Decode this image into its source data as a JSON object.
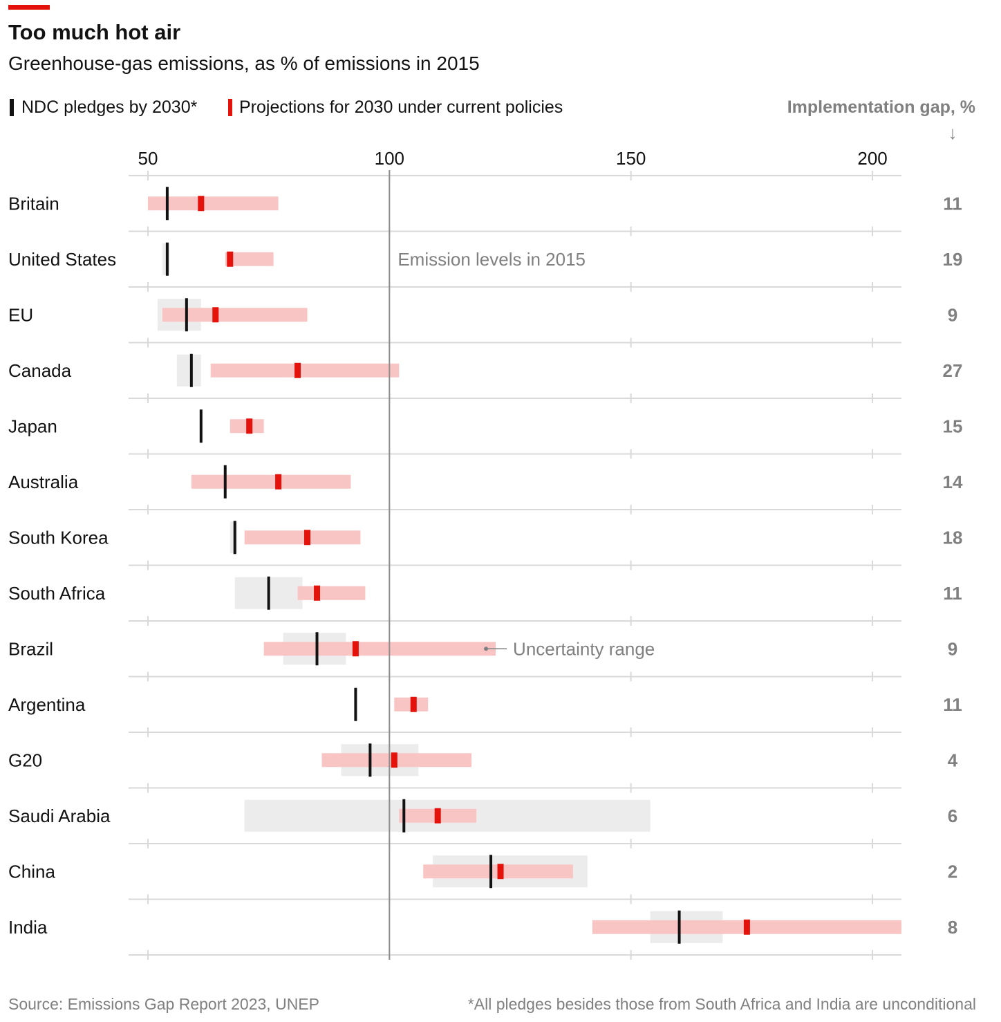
{
  "colors": {
    "brand": "#e3120b",
    "pledge": "#121212",
    "pledge_range": "#ececec",
    "projection": "#e3120b",
    "projection_range": "#f9c5c4",
    "reference_line": "#8c8c8c",
    "separator": "#d9d9d9",
    "muted_text": "#808080"
  },
  "chart_data": {
    "type": "scatter",
    "title": "Too much hot air",
    "subtitle": "Greenhouse-gas emissions, as % of emissions in 2015",
    "xlabel": "",
    "ylabel": "",
    "xlim": [
      46,
      206
    ],
    "xticks": [
      50,
      100,
      150,
      200
    ],
    "xaxis_position": "top",
    "grid": {
      "vertical": false,
      "horizontal": true
    },
    "legend_placement": "top-left",
    "categories": [
      "Britain",
      "United States",
      "EU",
      "Canada",
      "Japan",
      "Australia",
      "South Korea",
      "South Africa",
      "Brazil",
      "Argentina",
      "G20",
      "Saudi Arabia",
      "China",
      "India"
    ],
    "series": [
      {
        "name": "NDC pledges by 2030*",
        "values": [
          54,
          54,
          58,
          59,
          61,
          66,
          68,
          75,
          85,
          93,
          96,
          103,
          121,
          160
        ],
        "range": [
          null,
          [
            53,
            54.5
          ],
          [
            52,
            61
          ],
          [
            56,
            61
          ],
          null,
          null,
          [
            67,
            68.5
          ],
          [
            68,
            82
          ],
          [
            78,
            91
          ],
          null,
          [
            90,
            106
          ],
          [
            70,
            154
          ],
          [
            109,
            141
          ],
          [
            154,
            169
          ]
        ]
      },
      {
        "name": "Projections for 2030 under current policies",
        "values": [
          61,
          67,
          64,
          81,
          71,
          77,
          83,
          85,
          93,
          105,
          101,
          110,
          123,
          174
        ],
        "range": [
          [
            50,
            77
          ],
          [
            66,
            76
          ],
          [
            53,
            83
          ],
          [
            63,
            102
          ],
          [
            67,
            74
          ],
          [
            59,
            92
          ],
          [
            70,
            94
          ],
          [
            81,
            95
          ],
          [
            74,
            122
          ],
          [
            101,
            108
          ],
          [
            86,
            117
          ],
          [
            102,
            118
          ],
          [
            107,
            138
          ],
          [
            142,
            206
          ]
        ]
      }
    ],
    "reference_line": {
      "value": 100,
      "label": "Emission levels in 2015"
    },
    "range_annotation": "Uncertainty range",
    "implementation_gap": {
      "label": "Implementation gap, %",
      "arrow": "↓",
      "values": [
        11,
        19,
        9,
        27,
        15,
        14,
        18,
        11,
        9,
        11,
        4,
        6,
        2,
        8
      ]
    }
  },
  "footer": {
    "source": "Source: Emissions Gap Report 2023, UNEP",
    "note": "*All pledges besides those from South Africa and India are unconditional"
  }
}
